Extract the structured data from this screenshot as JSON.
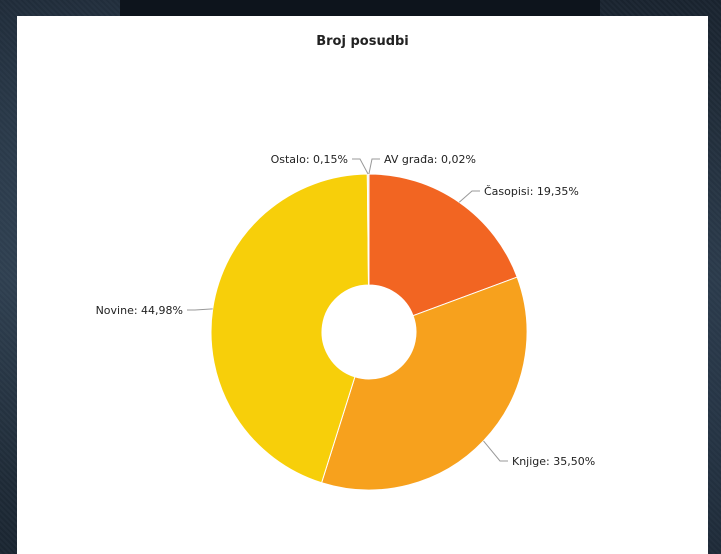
{
  "chart_data": {
    "type": "pie",
    "title": "Broj posudbi",
    "slices": [
      {
        "name": "Časopisi",
        "value": 19.35,
        "label": "Časopisi: 19,35%",
        "color": "#f26522"
      },
      {
        "name": "Knjige",
        "value": 35.5,
        "label": "Knjige: 35,50%",
        "color": "#f7a11d"
      },
      {
        "name": "Novine",
        "value": 44.98,
        "label": "Novine: 44,98%",
        "color": "#f7cf0a"
      },
      {
        "name": "Ostalo",
        "value": 0.15,
        "label": "Ostalo: 0,15%",
        "color": "#d9d9d9"
      },
      {
        "name": "AV građa",
        "value": 0.02,
        "label": "AV građa: 0,02%",
        "color": "#cccccc"
      }
    ],
    "donut": true,
    "legend": "none"
  }
}
